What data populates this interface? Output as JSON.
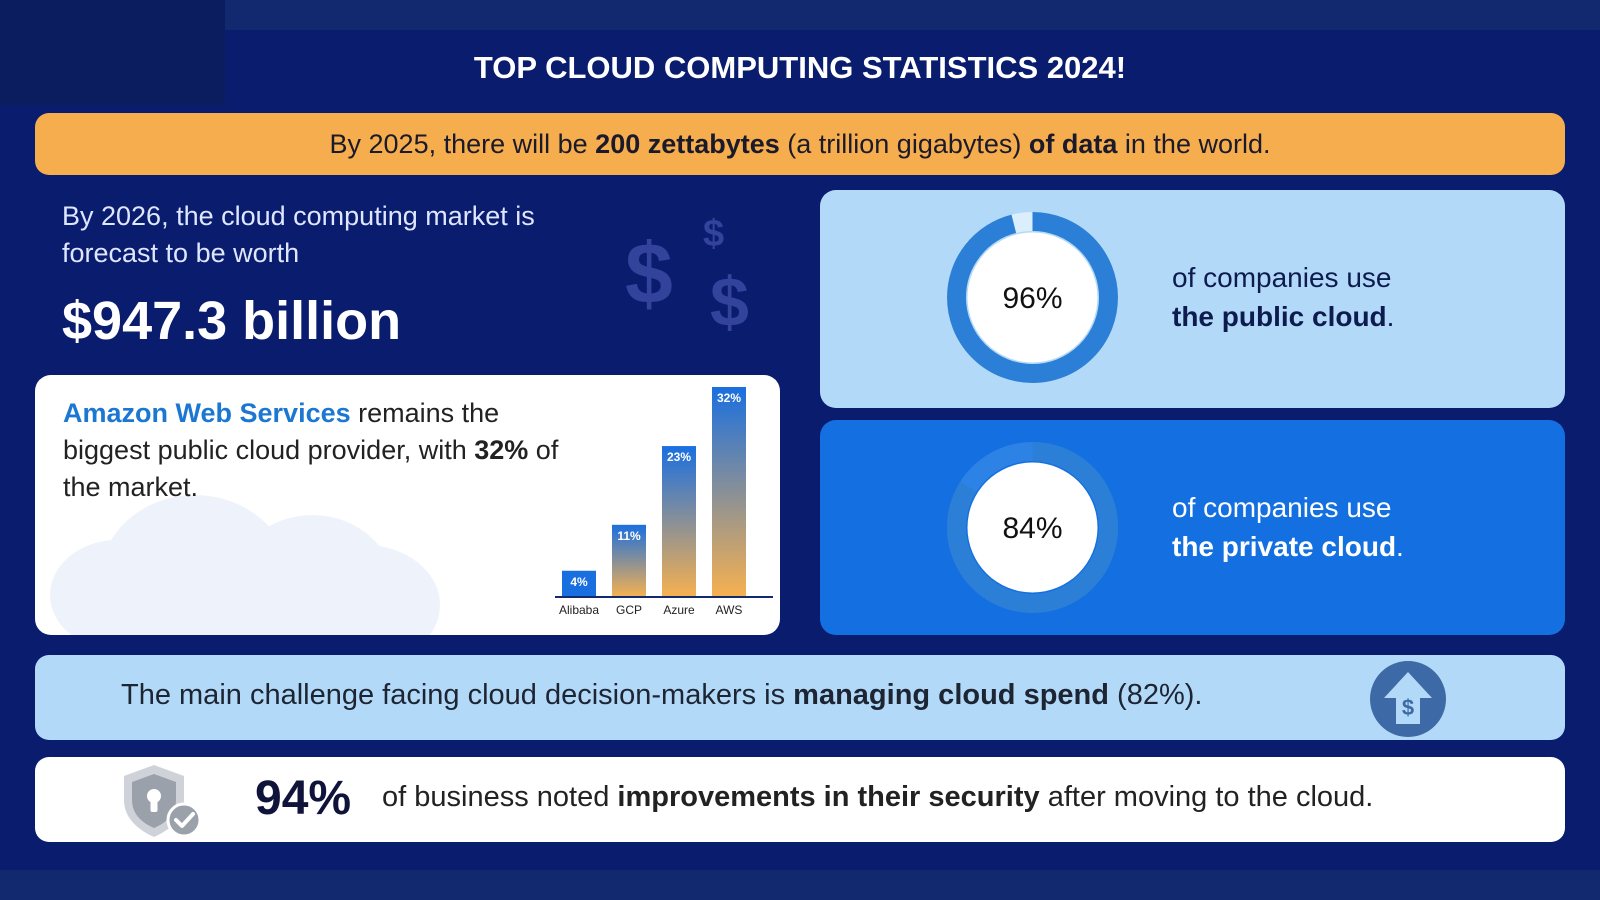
{
  "title": "TOP CLOUD COMPUTING STATISTICS 2024!",
  "banner": {
    "pre": "By 2025, there will be ",
    "bold1": "200 zettabytes",
    "mid": " (a trillion gigabytes) ",
    "bold2": "of data",
    "post": " in the world."
  },
  "market": {
    "intro": "By 2026, the cloud computing market is forecast to be worth",
    "value": "$947.3 billion",
    "decor_symbol": "$"
  },
  "providers": {
    "name": "Amazon Web Services",
    "text1": " remains the biggest public cloud provider, with ",
    "share": "32%",
    "text2": " of the market.",
    "chart_data": {
      "type": "bar",
      "categories": [
        "Alibaba",
        "GCP",
        "Azure",
        "AWS"
      ],
      "values": [
        4,
        11,
        23,
        32
      ],
      "value_labels": [
        "4%",
        "11%",
        "23%",
        "32%"
      ],
      "ylim": [
        0,
        32
      ],
      "gradient": [
        "#1a6fe0",
        "#f7b14f"
      ]
    }
  },
  "public_cloud": {
    "percent": 96,
    "label": "96%",
    "line1": "of companies use",
    "line2_bold": "the public cloud",
    "period": "."
  },
  "private_cloud": {
    "percent": 84,
    "label": "84%",
    "line1": "of companies use",
    "line2_bold": "the private cloud",
    "period": "."
  },
  "challenge": {
    "pre": "The main challenge facing cloud decision-makers is ",
    "bold": "managing cloud spend",
    "post": " (82%).",
    "icon": "dollar-upload-icon",
    "icon_glyph": "$"
  },
  "security": {
    "stat": "94%",
    "pre": "of business noted ",
    "bold": "improvements in their security",
    "post": " after moving to the cloud.",
    "icon": "shield-check-icon"
  },
  "colors": {
    "navy": "#0a1c6e",
    "orange": "#f6ad4e",
    "light_blue": "#b3d9f8",
    "blue": "#1470e0",
    "ring_blue": "#2c7fd6",
    "aws_blue": "#1b77d2"
  }
}
